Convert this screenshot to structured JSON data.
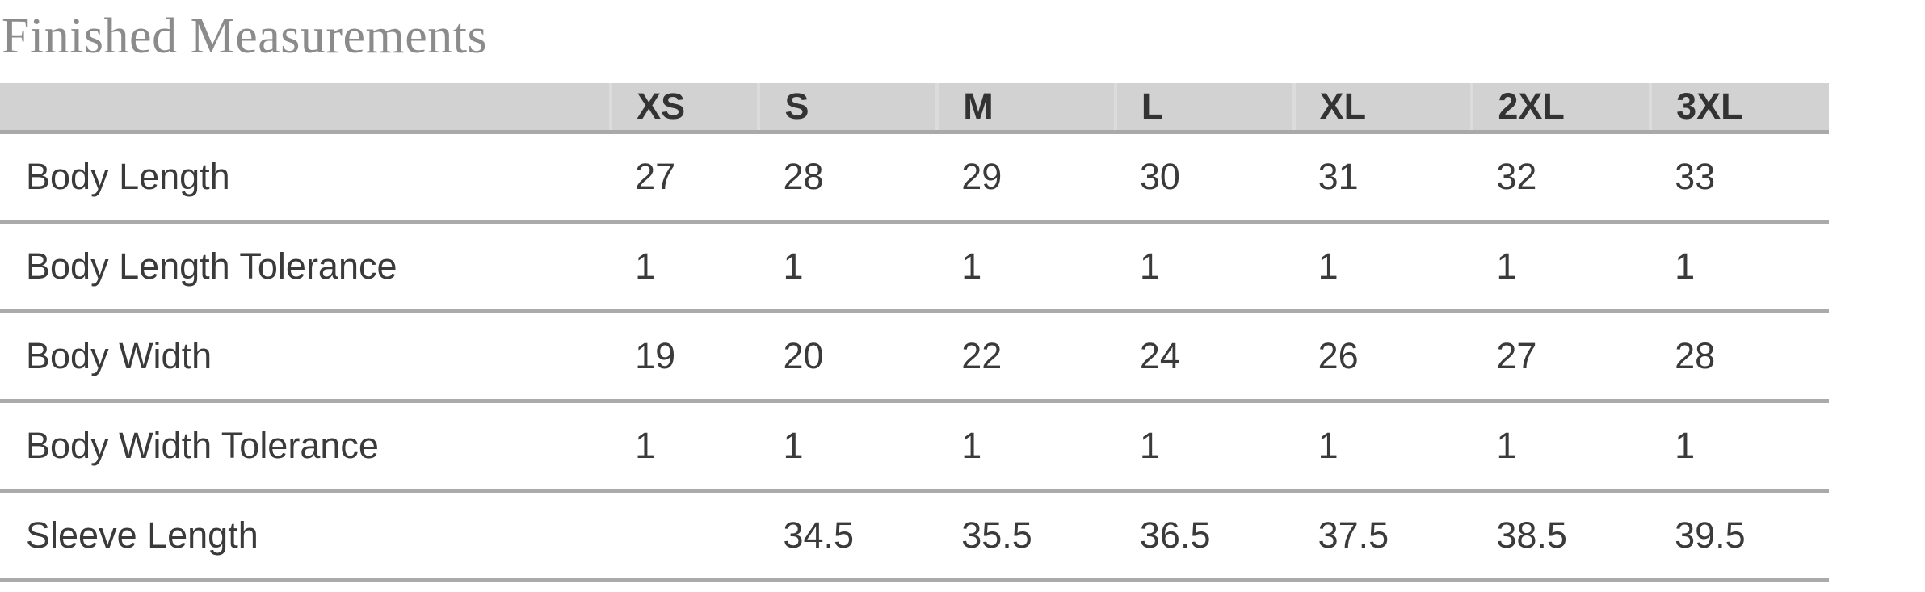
{
  "title": "Finished Measurements",
  "table": {
    "corner_label": "",
    "columns": [
      "XS",
      "S",
      "M",
      "L",
      "XL",
      "2XL",
      "3XL"
    ],
    "rows": [
      {
        "label": "Body Length",
        "values": [
          "27",
          "28",
          "29",
          "30",
          "31",
          "32",
          "33"
        ]
      },
      {
        "label": "Body Length Tolerance",
        "values": [
          "1",
          "1",
          "1",
          "1",
          "1",
          "1",
          "1"
        ]
      },
      {
        "label": "Body Width",
        "values": [
          "19",
          "20",
          "22",
          "24",
          "26",
          "27",
          "28"
        ]
      },
      {
        "label": "Body Width Tolerance",
        "values": [
          "1",
          "1",
          "1",
          "1",
          "1",
          "1",
          "1"
        ]
      },
      {
        "label": "Sleeve Length",
        "values": [
          "",
          "34.5",
          "35.5",
          "36.5",
          "37.5",
          "38.5",
          "39.5"
        ]
      }
    ]
  },
  "colors": {
    "background": "#ffffff",
    "title_text": "#8b8b8b",
    "header_bg": "#d2d2d2",
    "header_text": "#333333",
    "header_separator": "#dcdcdc",
    "body_text": "#3a3a3a",
    "row_divider": "#aaaaaa"
  }
}
